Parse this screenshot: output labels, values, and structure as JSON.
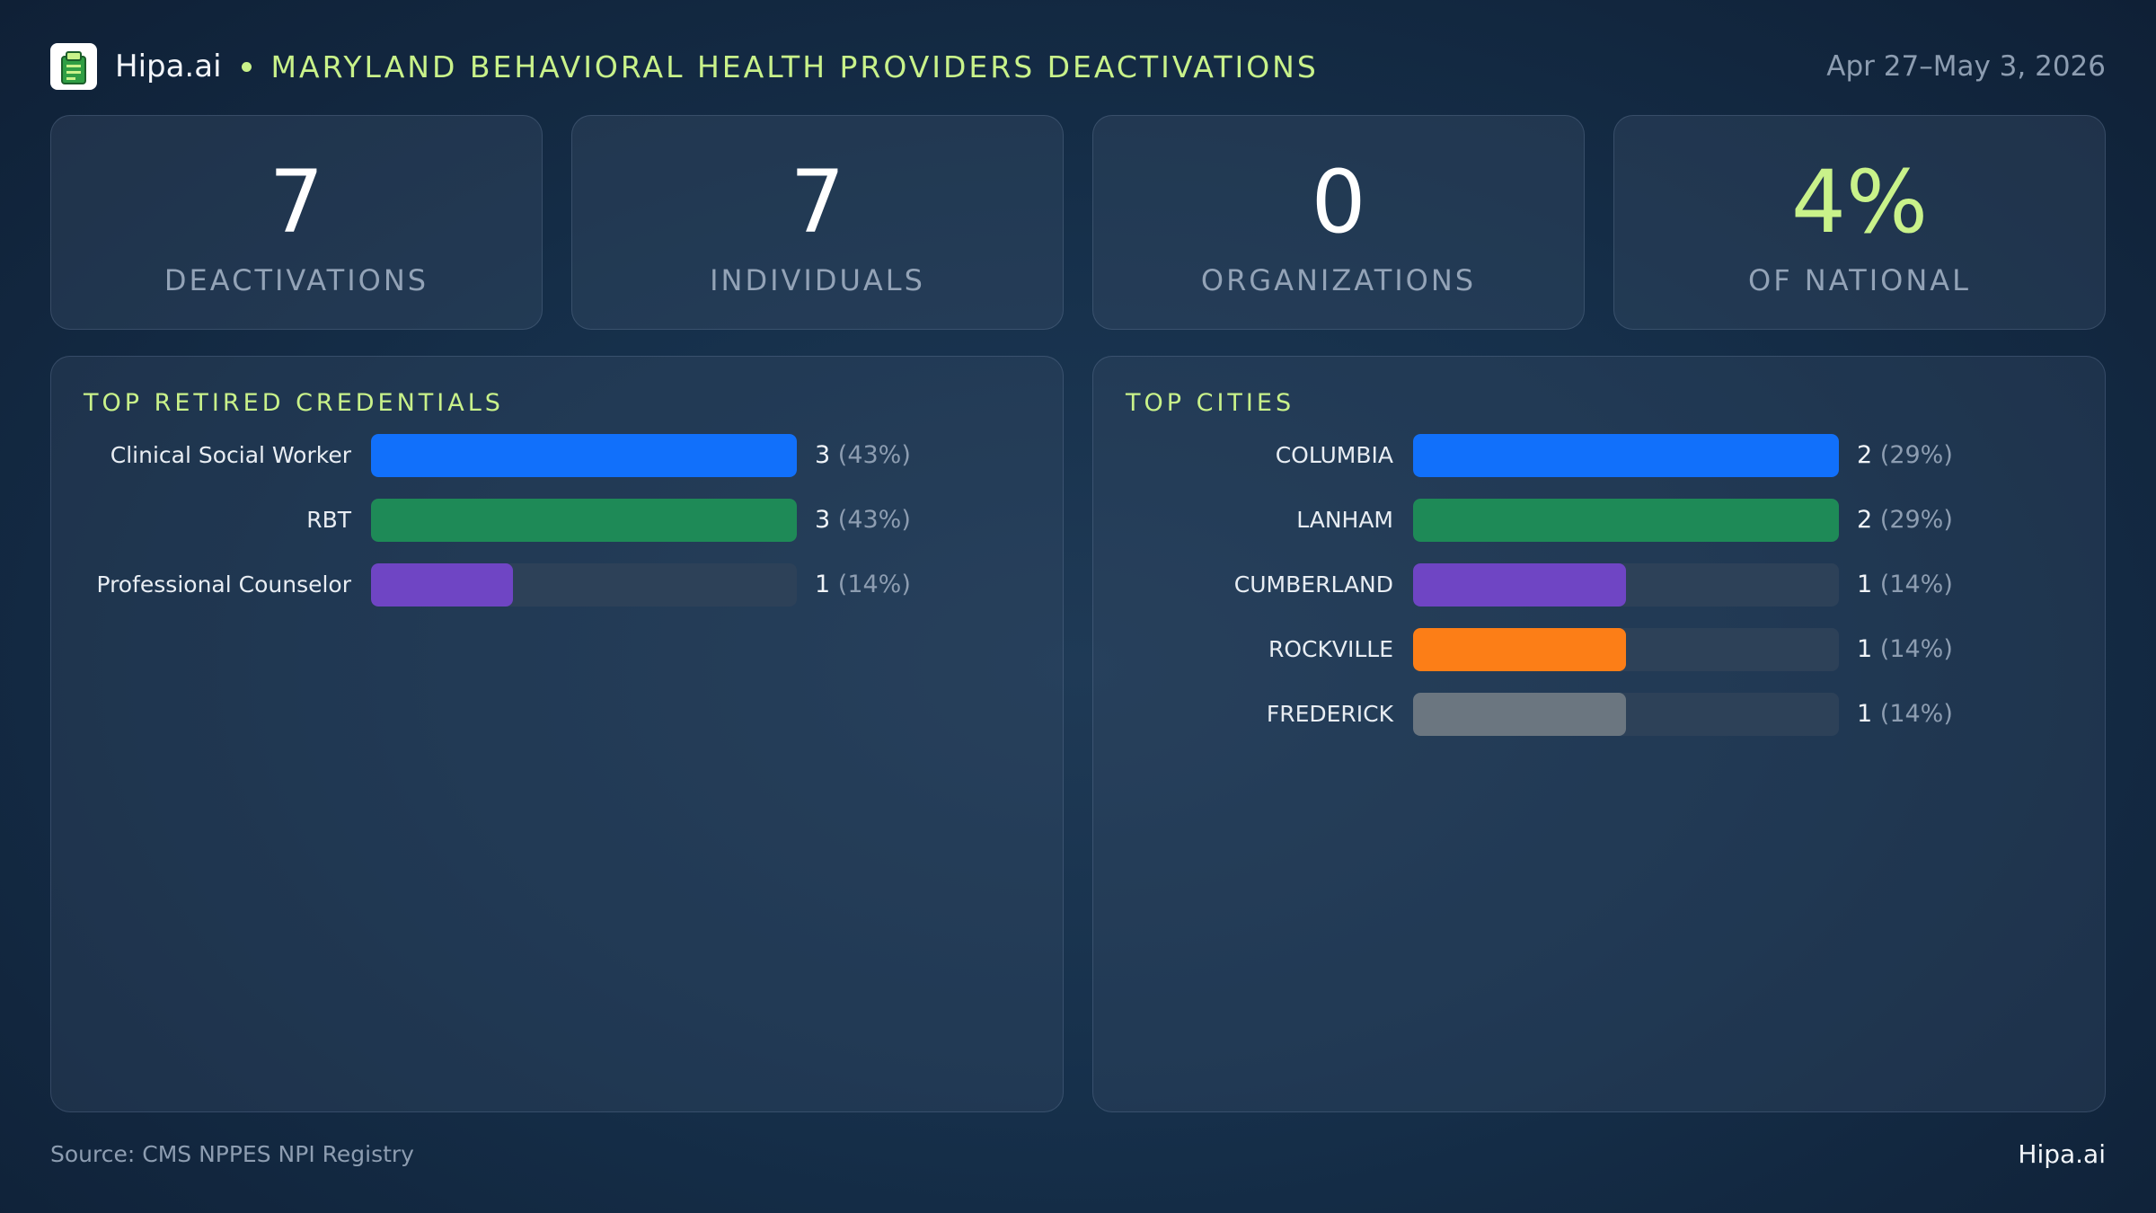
{
  "header": {
    "brand": "Hipa.ai",
    "title": "MARYLAND BEHAVIORAL HEALTH PROVIDERS DEACTIVATIONS",
    "date_range": "Apr 27–May 3, 2026",
    "logo_icon": "clipboard-icon"
  },
  "stats": [
    {
      "value": "7",
      "label": "DEACTIVATIONS"
    },
    {
      "value": "7",
      "label": "INDIVIDUALS"
    },
    {
      "value": "0",
      "label": "ORGANIZATIONS"
    },
    {
      "value": "4%",
      "label": "OF NATIONAL"
    }
  ],
  "colors": {
    "accent": "#c9f28a",
    "blue": "#1170fb",
    "green": "#1e8a57",
    "purple": "#6f45c4",
    "orange": "#fc7e17",
    "gray": "#6b7680",
    "track": "#2d4158"
  },
  "chart_data": [
    {
      "type": "bar",
      "orientation": "horizontal",
      "title": "TOP RETIRED CREDENTIALS",
      "categories": [
        "Clinical Social Worker",
        "RBT",
        "Professional Counselor"
      ],
      "values": [
        3,
        3,
        1
      ],
      "percent_labels": [
        "(43%)",
        "(43%)",
        "(14%)"
      ],
      "colors": [
        "#1170fb",
        "#1e8a57",
        "#6f45c4"
      ],
      "xlim": [
        0,
        3
      ]
    },
    {
      "type": "bar",
      "orientation": "horizontal",
      "title": "TOP CITIES",
      "categories": [
        "COLUMBIA",
        "LANHAM",
        "CUMBERLAND",
        "ROCKVILLE",
        "FREDERICK"
      ],
      "values": [
        2,
        2,
        1,
        1,
        1
      ],
      "percent_labels": [
        "(29%)",
        "(29%)",
        "(14%)",
        "(14%)",
        "(14%)"
      ],
      "colors": [
        "#1170fb",
        "#1e8a57",
        "#6f45c4",
        "#fc7e17",
        "#6b7680"
      ],
      "xlim": [
        0,
        2
      ]
    }
  ],
  "footer": {
    "source": "Source: CMS NPPES NPI Registry",
    "brand": "Hipa.ai"
  }
}
